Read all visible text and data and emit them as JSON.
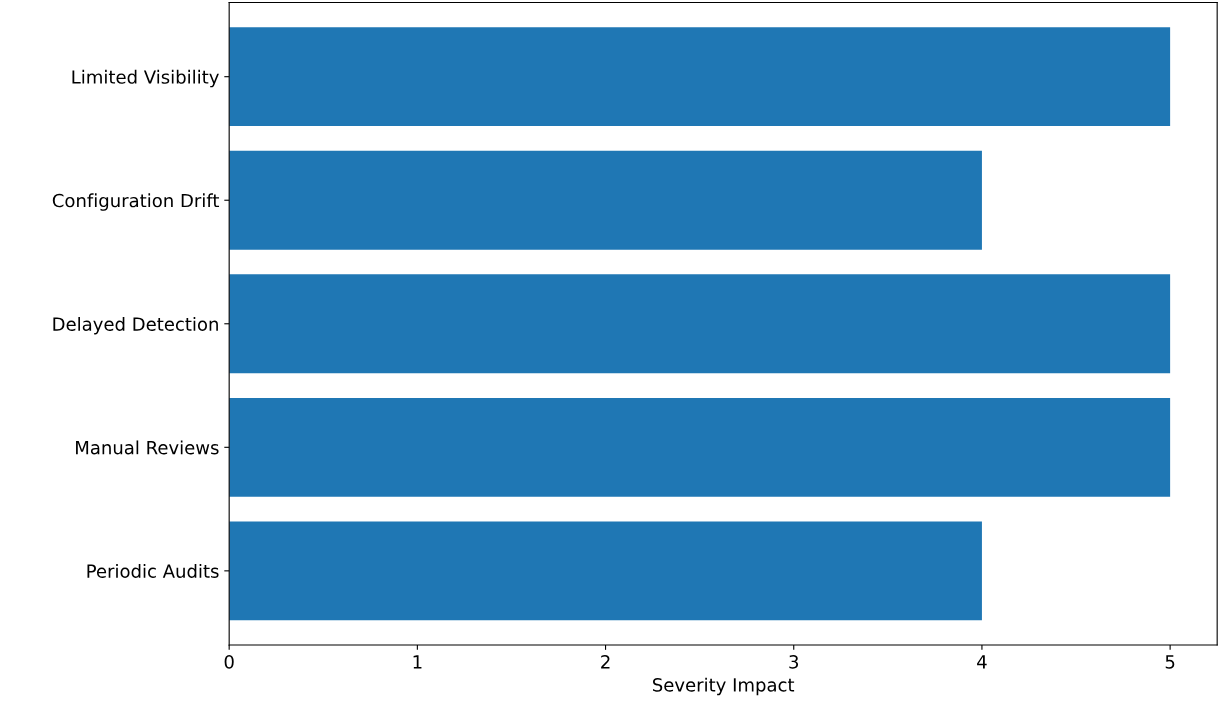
{
  "chart_data": {
    "type": "bar",
    "orientation": "horizontal",
    "xlabel": "Severity Impact",
    "categories": [
      "Limited Visibility",
      "Configuration Drift",
      "Delayed Detection",
      "Manual Reviews",
      "Periodic Audits"
    ],
    "values": [
      5,
      4,
      5,
      5,
      4
    ],
    "color": "#1f77b4",
    "xlim": [
      0,
      5.25
    ],
    "xticks": [
      0,
      1,
      2,
      3,
      4,
      5
    ],
    "grid": false,
    "legend": false
  }
}
